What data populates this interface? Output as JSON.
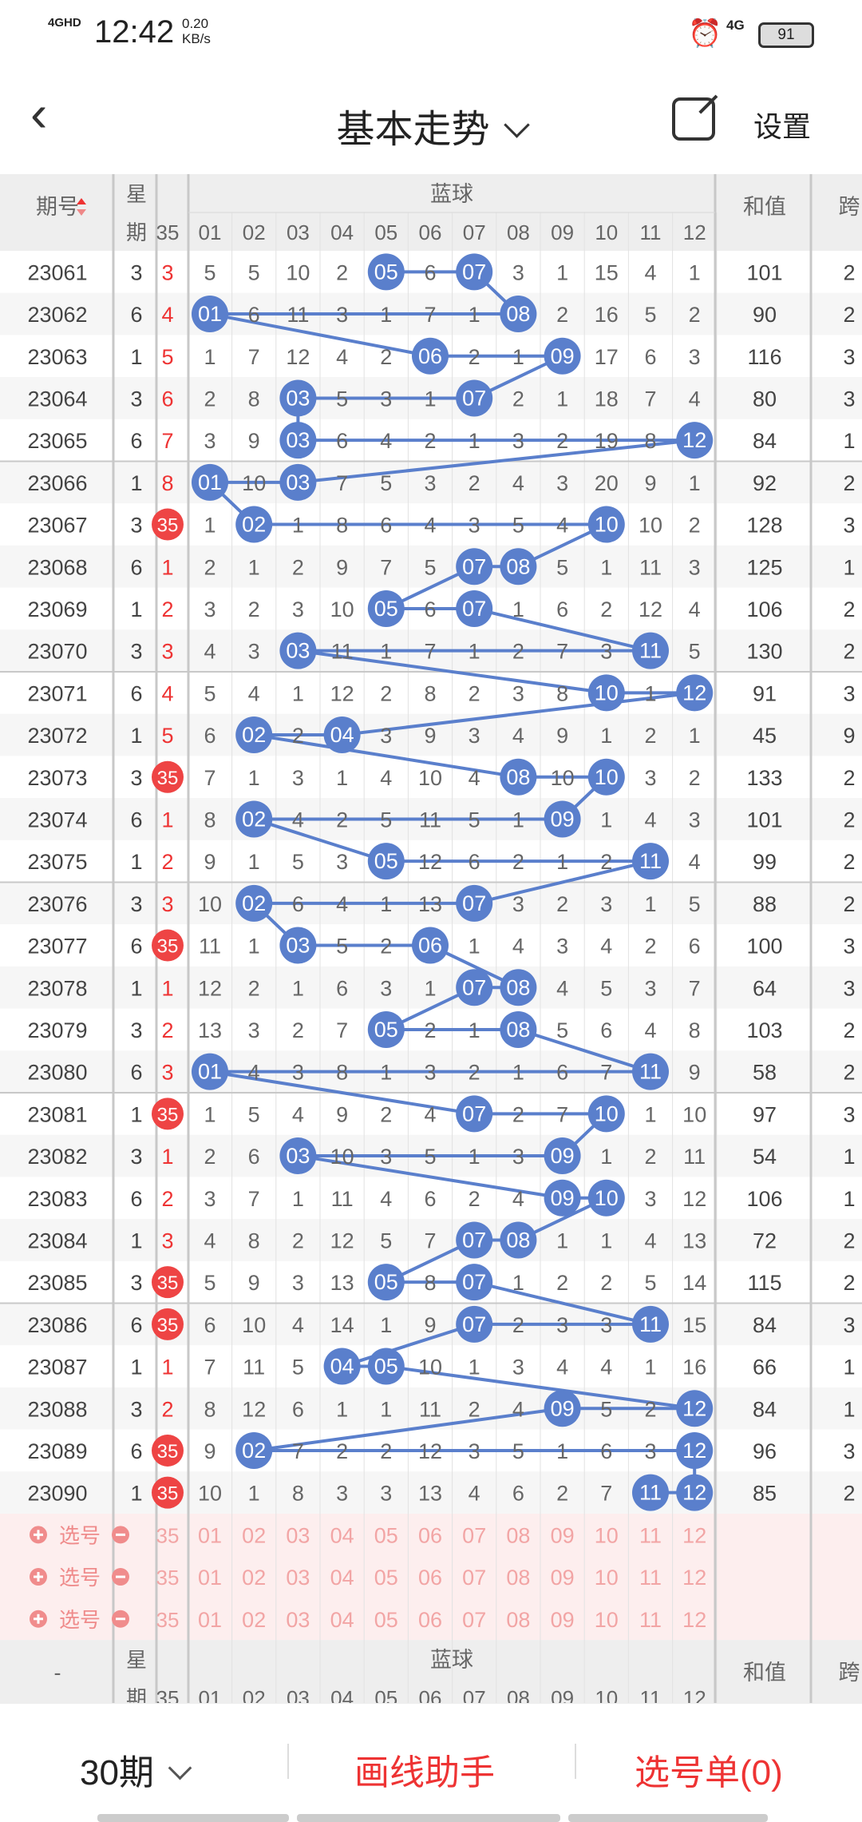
{
  "status": {
    "time": "12:42",
    "network": "4GHD",
    "speed_value": "0.20",
    "speed_unit": "KB/s",
    "signal_4g": "4G",
    "battery": "91",
    "alarm_icon": "alarm-icon"
  },
  "header": {
    "title": "基本走势",
    "settings_label": "设置"
  },
  "table": {
    "col_issue": "期号",
    "col_week_1": "星",
    "col_week_2": "期",
    "col_red_partial": "35",
    "col_blue_group": "蓝球",
    "blue_numbers": [
      "01",
      "02",
      "03",
      "04",
      "05",
      "06",
      "07",
      "08",
      "09",
      "10",
      "11",
      "12"
    ],
    "col_sum": "和值",
    "col_span": "跨",
    "rows": [
      {
        "issue": "23061",
        "week": "3",
        "red": "3",
        "blue": [
          5,
          5,
          10,
          2,
          "05",
          6,
          "07",
          3,
          1,
          15,
          4,
          1
        ],
        "sum": "101",
        "span": "2"
      },
      {
        "issue": "23062",
        "week": "6",
        "red": "4",
        "blue": [
          "01",
          6,
          11,
          3,
          1,
          7,
          1,
          "08",
          2,
          16,
          5,
          2
        ],
        "sum": "90",
        "span": "2"
      },
      {
        "issue": "23063",
        "week": "1",
        "red": "5",
        "blue": [
          1,
          7,
          12,
          4,
          2,
          "06",
          2,
          1,
          "09",
          17,
          6,
          3
        ],
        "sum": "116",
        "span": "3"
      },
      {
        "issue": "23064",
        "week": "3",
        "red": "6",
        "blue": [
          2,
          8,
          "03",
          5,
          3,
          1,
          "07",
          2,
          1,
          18,
          7,
          4
        ],
        "sum": "80",
        "span": "3"
      },
      {
        "issue": "23065",
        "week": "6",
        "red": "7",
        "blue": [
          3,
          9,
          "03",
          6,
          4,
          2,
          1,
          3,
          2,
          19,
          8,
          "12"
        ],
        "sum": "84",
        "span": "1"
      },
      {
        "issue": "23066",
        "week": "1",
        "red": "8",
        "blue": [
          "01",
          10,
          "03",
          7,
          5,
          3,
          2,
          4,
          3,
          20,
          9,
          1
        ],
        "sum": "92",
        "span": "2"
      },
      {
        "issue": "23067",
        "week": "3",
        "red": "35",
        "blue": [
          1,
          "02",
          1,
          8,
          6,
          4,
          3,
          5,
          4,
          "10",
          10,
          2
        ],
        "sum": "128",
        "span": "3"
      },
      {
        "issue": "23068",
        "week": "6",
        "red": "1",
        "blue": [
          2,
          1,
          2,
          9,
          7,
          5,
          "07",
          "08",
          5,
          1,
          11,
          3
        ],
        "sum": "125",
        "span": "1"
      },
      {
        "issue": "23069",
        "week": "1",
        "red": "2",
        "blue": [
          3,
          2,
          3,
          10,
          "05",
          6,
          "07",
          1,
          6,
          2,
          12,
          4
        ],
        "sum": "106",
        "span": "2"
      },
      {
        "issue": "23070",
        "week": "3",
        "red": "3",
        "blue": [
          4,
          3,
          "03",
          11,
          1,
          7,
          1,
          2,
          7,
          3,
          "11",
          5
        ],
        "sum": "130",
        "span": "2"
      },
      {
        "issue": "23071",
        "week": "6",
        "red": "4",
        "blue": [
          5,
          4,
          1,
          12,
          2,
          8,
          2,
          3,
          8,
          "10",
          1,
          "12"
        ],
        "sum": "91",
        "span": "3"
      },
      {
        "issue": "23072",
        "week": "1",
        "red": "5",
        "blue": [
          6,
          "02",
          2,
          "04",
          3,
          9,
          3,
          4,
          9,
          1,
          2,
          1
        ],
        "sum": "45",
        "span": "9"
      },
      {
        "issue": "23073",
        "week": "3",
        "red": "35",
        "blue": [
          7,
          1,
          3,
          1,
          4,
          10,
          4,
          "08",
          10,
          "10",
          3,
          2
        ],
        "sum": "133",
        "span": "2"
      },
      {
        "issue": "23074",
        "week": "6",
        "red": "1",
        "blue": [
          8,
          "02",
          4,
          2,
          5,
          11,
          5,
          1,
          "09",
          1,
          4,
          3
        ],
        "sum": "101",
        "span": "2"
      },
      {
        "issue": "23075",
        "week": "1",
        "red": "2",
        "blue": [
          9,
          1,
          5,
          3,
          "05",
          12,
          6,
          2,
          1,
          2,
          "11",
          4
        ],
        "sum": "99",
        "span": "2"
      },
      {
        "issue": "23076",
        "week": "3",
        "red": "3",
        "blue": [
          10,
          "02",
          6,
          4,
          1,
          13,
          "07",
          3,
          2,
          3,
          1,
          5
        ],
        "sum": "88",
        "span": "2"
      },
      {
        "issue": "23077",
        "week": "6",
        "red": "35",
        "blue": [
          11,
          1,
          "03",
          5,
          2,
          "06",
          1,
          4,
          3,
          4,
          2,
          6
        ],
        "sum": "100",
        "span": "3"
      },
      {
        "issue": "23078",
        "week": "1",
        "red": "1",
        "blue": [
          12,
          2,
          1,
          6,
          3,
          1,
          "07",
          "08",
          4,
          5,
          3,
          7
        ],
        "sum": "64",
        "span": "3"
      },
      {
        "issue": "23079",
        "week": "3",
        "red": "2",
        "blue": [
          13,
          3,
          2,
          7,
          "05",
          2,
          1,
          "08",
          5,
          6,
          4,
          8
        ],
        "sum": "103",
        "span": "2"
      },
      {
        "issue": "23080",
        "week": "6",
        "red": "3",
        "blue": [
          "01",
          4,
          3,
          8,
          1,
          3,
          2,
          1,
          6,
          7,
          "11",
          9
        ],
        "sum": "58",
        "span": "2"
      },
      {
        "issue": "23081",
        "week": "1",
        "red": "35",
        "blue": [
          1,
          5,
          4,
          9,
          2,
          4,
          "07",
          2,
          7,
          "10",
          1,
          10
        ],
        "sum": "97",
        "span": "3"
      },
      {
        "issue": "23082",
        "week": "3",
        "red": "1",
        "blue": [
          2,
          6,
          "03",
          10,
          3,
          5,
          1,
          3,
          "09",
          1,
          2,
          11
        ],
        "sum": "54",
        "span": "1"
      },
      {
        "issue": "23083",
        "week": "6",
        "red": "2",
        "blue": [
          3,
          7,
          1,
          11,
          4,
          6,
          2,
          4,
          "09",
          "10",
          3,
          12
        ],
        "sum": "106",
        "span": "1"
      },
      {
        "issue": "23084",
        "week": "1",
        "red": "3",
        "blue": [
          4,
          8,
          2,
          12,
          5,
          7,
          "07",
          "08",
          1,
          1,
          4,
          13
        ],
        "sum": "72",
        "span": "2"
      },
      {
        "issue": "23085",
        "week": "3",
        "red": "35",
        "blue": [
          5,
          9,
          3,
          13,
          "05",
          8,
          "07",
          1,
          2,
          2,
          5,
          14
        ],
        "sum": "115",
        "span": "2"
      },
      {
        "issue": "23086",
        "week": "6",
        "red": "35",
        "blue": [
          6,
          10,
          4,
          14,
          1,
          9,
          "07",
          2,
          3,
          3,
          "11",
          15
        ],
        "sum": "84",
        "span": "3"
      },
      {
        "issue": "23087",
        "week": "1",
        "red": "1",
        "blue": [
          7,
          11,
          5,
          "04",
          "05",
          10,
          1,
          3,
          4,
          4,
          1,
          16
        ],
        "sum": "66",
        "span": "1"
      },
      {
        "issue": "23088",
        "week": "3",
        "red": "2",
        "blue": [
          8,
          12,
          6,
          1,
          1,
          11,
          2,
          4,
          "09",
          5,
          2,
          "12"
        ],
        "sum": "84",
        "span": "1"
      },
      {
        "issue": "23089",
        "week": "6",
        "red": "35",
        "blue": [
          9,
          "02",
          7,
          2,
          2,
          12,
          3,
          5,
          1,
          6,
          3,
          "12"
        ],
        "sum": "96",
        "span": "3"
      },
      {
        "issue": "23090",
        "week": "1",
        "red": "35",
        "blue": [
          10,
          1,
          8,
          3,
          3,
          13,
          4,
          6,
          2,
          7,
          "11",
          "12"
        ],
        "sum": "85",
        "span": "2"
      }
    ],
    "select_label": "选号",
    "select_rows": 3,
    "footer_issue": "-"
  },
  "bottom": {
    "period_label": "30期",
    "draw_helper": "画线助手",
    "cart": "选号单(0)"
  },
  "colors": {
    "blue_ball": "#5a7fcc",
    "red_ball": "#ee4444",
    "line": "#5a7fcc",
    "header_bg": "#eeeeee",
    "select_bg": "#fdeeee"
  }
}
